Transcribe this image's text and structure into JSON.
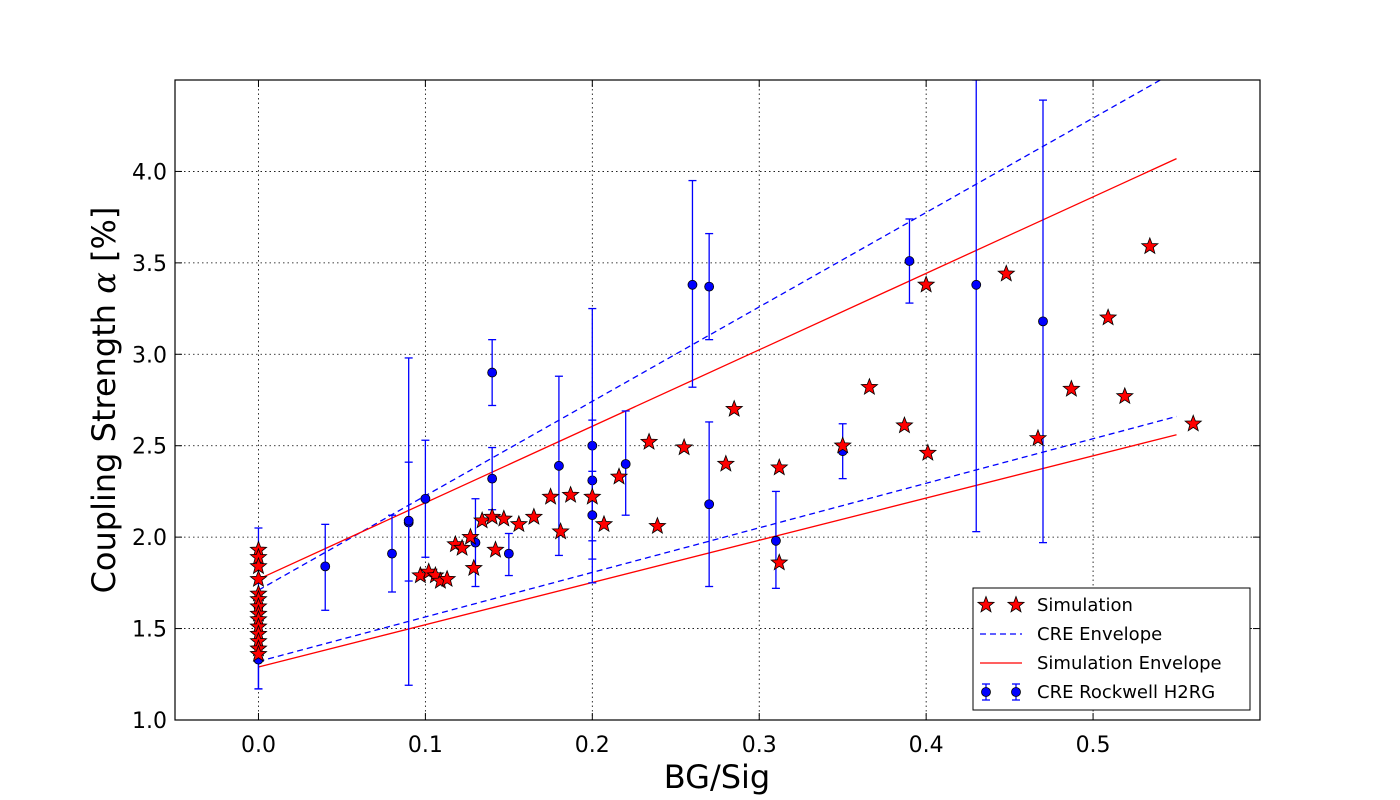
{
  "chart_data": {
    "type": "scatter",
    "title": "",
    "xlabel": "BG/Sig",
    "ylabel_prefix": "Coupling Strength ",
    "ylabel_symbol": "α",
    "ylabel_suffix": " [%]",
    "xlim": [
      -0.05,
      0.6
    ],
    "ylim": [
      1.0,
      4.5
    ],
    "xticks": [
      0.0,
      0.1,
      0.2,
      0.3,
      0.4,
      0.5
    ],
    "xtick_labels": [
      "0.0",
      "0.1",
      "0.2",
      "0.3",
      "0.4",
      "0.5"
    ],
    "yticks": [
      1.0,
      1.5,
      2.0,
      2.5,
      3.0,
      3.5,
      4.0
    ],
    "ytick_labels": [
      "1.0",
      "1.5",
      "2.0",
      "2.5",
      "3.0",
      "3.5",
      "4.0"
    ],
    "grid": true,
    "legend_position": "lower-right",
    "series": [
      {
        "name": "Simulation",
        "kind": "star",
        "color": "#ff0000",
        "points": [
          [
            0.0,
            1.93
          ],
          [
            0.0,
            1.89
          ],
          [
            0.0,
            1.84
          ],
          [
            0.0,
            1.77
          ],
          [
            0.0,
            1.69
          ],
          [
            0.0,
            1.66
          ],
          [
            0.0,
            1.62
          ],
          [
            0.0,
            1.58
          ],
          [
            0.0,
            1.55
          ],
          [
            0.0,
            1.51
          ],
          [
            0.0,
            1.47
          ],
          [
            0.0,
            1.43
          ],
          [
            0.0,
            1.39
          ],
          [
            0.0,
            1.36
          ],
          [
            0.097,
            1.79
          ],
          [
            0.102,
            1.81
          ],
          [
            0.106,
            1.79
          ],
          [
            0.109,
            1.76
          ],
          [
            0.113,
            1.77
          ],
          [
            0.118,
            1.96
          ],
          [
            0.122,
            1.94
          ],
          [
            0.127,
            2.0
          ],
          [
            0.129,
            1.83
          ],
          [
            0.134,
            2.09
          ],
          [
            0.14,
            2.11
          ],
          [
            0.142,
            1.93
          ],
          [
            0.147,
            2.1
          ],
          [
            0.156,
            2.07
          ],
          [
            0.165,
            2.11
          ],
          [
            0.175,
            2.22
          ],
          [
            0.181,
            2.03
          ],
          [
            0.187,
            2.23
          ],
          [
            0.2,
            2.22
          ],
          [
            0.207,
            2.07
          ],
          [
            0.216,
            2.33
          ],
          [
            0.234,
            2.52
          ],
          [
            0.239,
            2.06
          ],
          [
            0.255,
            2.49
          ],
          [
            0.28,
            2.4
          ],
          [
            0.285,
            2.7
          ],
          [
            0.312,
            2.38
          ],
          [
            0.312,
            1.86
          ],
          [
            0.35,
            2.5
          ],
          [
            0.366,
            2.82
          ],
          [
            0.387,
            2.61
          ],
          [
            0.4,
            3.38
          ],
          [
            0.401,
            2.46
          ],
          [
            0.448,
            3.44
          ],
          [
            0.467,
            2.54
          ],
          [
            0.487,
            2.81
          ],
          [
            0.509,
            3.2
          ],
          [
            0.519,
            2.77
          ],
          [
            0.534,
            3.59
          ],
          [
            0.56,
            2.62
          ]
        ]
      },
      {
        "name": "CRE Rockwell H2RG",
        "kind": "errorbar",
        "color": "#0000ff",
        "points": [
          {
            "x": 0.0,
            "y": 1.62,
            "lo": 1.17,
            "hi": 2.05
          },
          {
            "x": 0.0,
            "y": 1.33,
            "lo": 1.17,
            "hi": 1.5
          },
          {
            "x": 0.04,
            "y": 1.84,
            "lo": 1.6,
            "hi": 2.07
          },
          {
            "x": 0.08,
            "y": 1.91,
            "lo": 1.7,
            "hi": 2.12
          },
          {
            "x": 0.09,
            "y": 2.08,
            "lo": 1.19,
            "hi": 2.98
          },
          {
            "x": 0.09,
            "y": 2.09,
            "lo": 1.76,
            "hi": 2.41
          },
          {
            "x": 0.1,
            "y": 2.21,
            "lo": 1.89,
            "hi": 2.53
          },
          {
            "x": 0.13,
            "y": 1.97,
            "lo": 1.73,
            "hi": 2.21
          },
          {
            "x": 0.14,
            "y": 2.9,
            "lo": 2.72,
            "hi": 3.08
          },
          {
            "x": 0.14,
            "y": 2.32,
            "lo": 2.15,
            "hi": 2.49
          },
          {
            "x": 0.15,
            "y": 1.91,
            "lo": 1.79,
            "hi": 2.02
          },
          {
            "x": 0.18,
            "y": 2.39,
            "lo": 1.9,
            "hi": 2.88
          },
          {
            "x": 0.2,
            "y": 2.5,
            "lo": 1.75,
            "hi": 3.25
          },
          {
            "x": 0.2,
            "y": 2.31,
            "lo": 1.98,
            "hi": 2.64
          },
          {
            "x": 0.2,
            "y": 2.12,
            "lo": 1.88,
            "hi": 2.36
          },
          {
            "x": 0.22,
            "y": 2.4,
            "lo": 2.12,
            "hi": 2.69
          },
          {
            "x": 0.26,
            "y": 3.38,
            "lo": 2.82,
            "hi": 3.95
          },
          {
            "x": 0.27,
            "y": 3.37,
            "lo": 3.08,
            "hi": 3.66
          },
          {
            "x": 0.27,
            "y": 2.18,
            "lo": 1.73,
            "hi": 2.63
          },
          {
            "x": 0.31,
            "y": 1.98,
            "lo": 1.72,
            "hi": 2.25
          },
          {
            "x": 0.35,
            "y": 2.47,
            "lo": 2.32,
            "hi": 2.62
          },
          {
            "x": 0.39,
            "y": 3.51,
            "lo": 3.28,
            "hi": 3.74
          },
          {
            "x": 0.43,
            "y": 3.38,
            "lo": 2.03,
            "hi": 4.5
          },
          {
            "x": 0.47,
            "y": 3.18,
            "lo": 1.97,
            "hi": 4.39
          }
        ]
      }
    ],
    "lines": [
      {
        "name": "CRE Envelope",
        "style": "dashed",
        "color": "#0000ff",
        "segments": [
          [
            [
              0.0,
              1.71
            ],
            [
              0.55,
              4.55
            ]
          ],
          [
            [
              0.0,
              1.32
            ],
            [
              0.55,
              2.66
            ]
          ]
        ]
      },
      {
        "name": "Simulation Envelope",
        "style": "solid",
        "color": "#ff0000",
        "segments": [
          [
            [
              0.0,
              1.77
            ],
            [
              0.55,
              4.07
            ]
          ],
          [
            [
              0.0,
              1.29
            ],
            [
              0.55,
              2.56
            ]
          ]
        ]
      }
    ],
    "legend": [
      {
        "label": "Simulation",
        "kind": "star",
        "color": "#ff0000"
      },
      {
        "label": "CRE Envelope",
        "kind": "dashed",
        "color": "#0000ff"
      },
      {
        "label": "Simulation Envelope",
        "kind": "solid",
        "color": "#ff0000"
      },
      {
        "label": "CRE Rockwell H2RG",
        "kind": "errorbar",
        "color": "#0000ff"
      }
    ]
  }
}
